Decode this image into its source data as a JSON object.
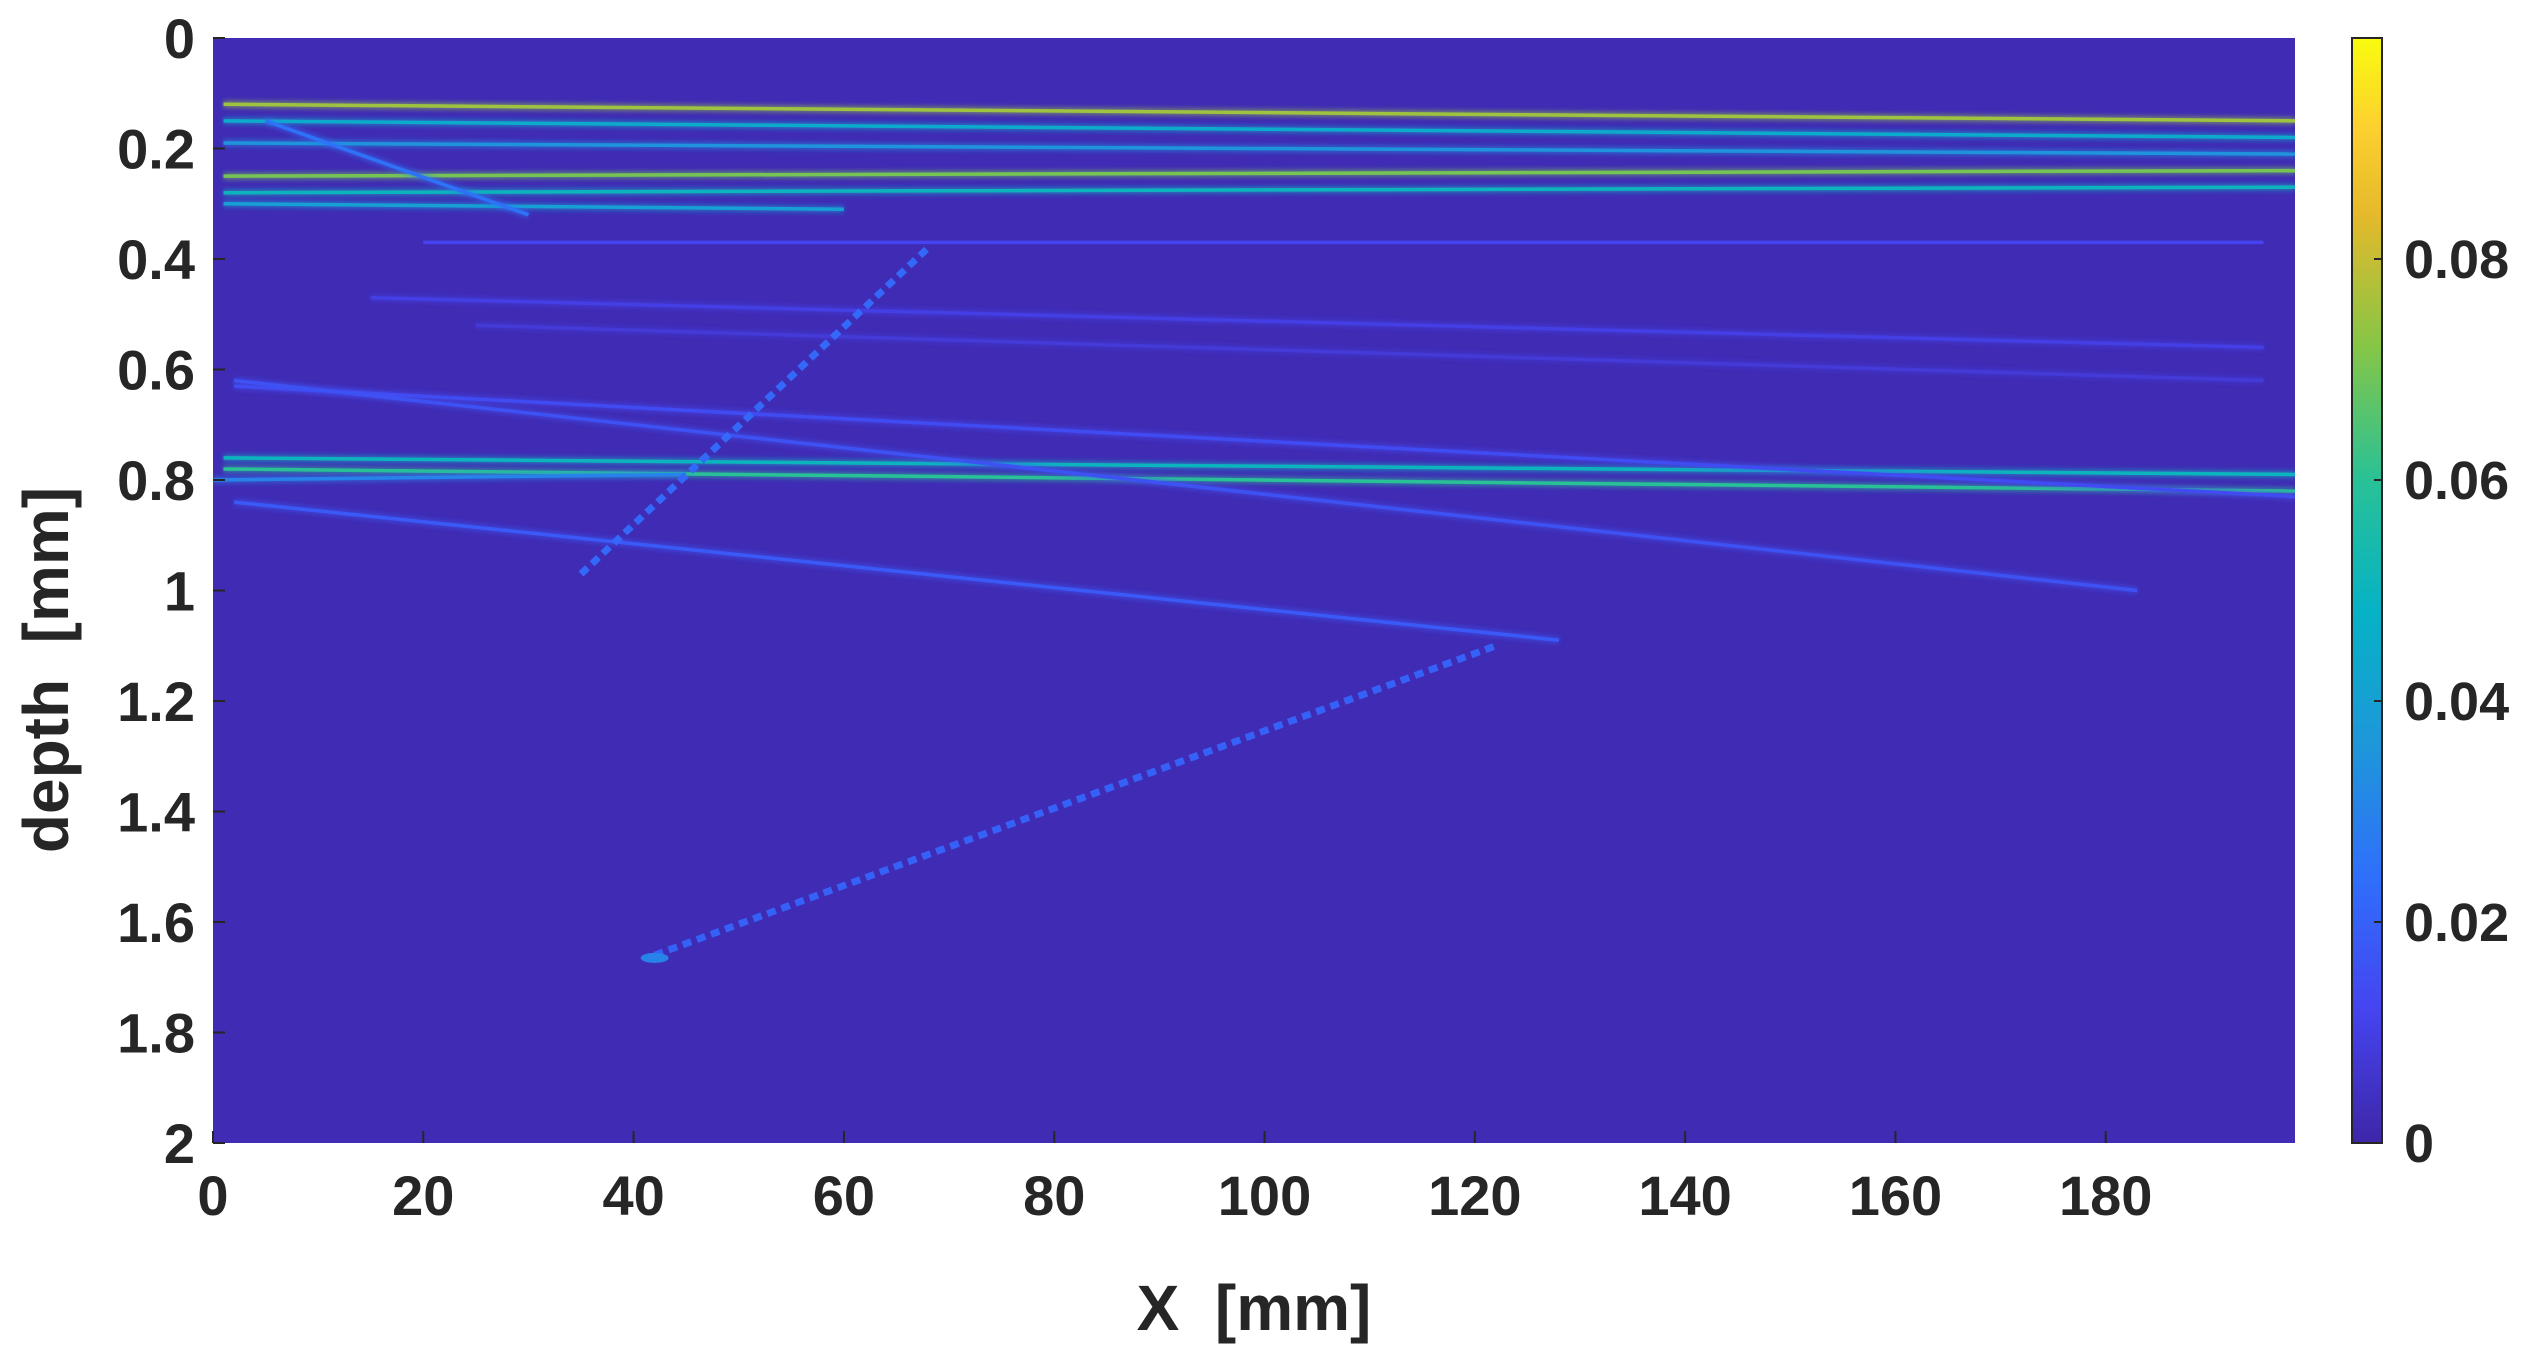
{
  "chart_data": {
    "type": "heatmap",
    "title": "",
    "xlabel": "X  [mm]",
    "ylabel": "depth  [mm]",
    "xlim": [
      0,
      198
    ],
    "ylim": [
      2,
      0
    ],
    "x_ticks": [
      0,
      20,
      40,
      60,
      80,
      100,
      120,
      140,
      160,
      180
    ],
    "y_ticks": [
      0,
      0.2,
      0.4,
      0.6,
      0.8,
      1,
      1.2,
      1.4,
      1.6,
      1.8,
      2
    ],
    "y_tick_labels": [
      "0",
      "0.2",
      "0.4",
      "0.6",
      "0.8",
      "1",
      "1.2",
      "1.4",
      "1.6",
      "1.8",
      "2"
    ],
    "colorbar": {
      "colormap": "parula",
      "range": [
        0,
        0.1
      ],
      "ticks": [
        0,
        0.02,
        0.04,
        0.06,
        0.08
      ],
      "tick_labels": [
        "0",
        "0.02",
        "0.04",
        "0.06",
        "0.08"
      ]
    },
    "background_value": 0.002,
    "features": [
      {
        "kind": "line",
        "x": [
          1,
          198
        ],
        "depth": [
          0.12,
          0.15
        ],
        "value": 0.075
      },
      {
        "kind": "line",
        "x": [
          1,
          198
        ],
        "depth": [
          0.15,
          0.18
        ],
        "value": 0.045
      },
      {
        "kind": "line",
        "x": [
          1,
          198
        ],
        "depth": [
          0.19,
          0.21
        ],
        "value": 0.035
      },
      {
        "kind": "line",
        "x": [
          1,
          198
        ],
        "depth": [
          0.25,
          0.24
        ],
        "value": 0.07
      },
      {
        "kind": "line",
        "x": [
          1,
          198
        ],
        "depth": [
          0.28,
          0.27
        ],
        "value": 0.05
      },
      {
        "kind": "line",
        "x": [
          1,
          60
        ],
        "depth": [
          0.3,
          0.31
        ],
        "value": 0.04
      },
      {
        "kind": "line",
        "x": [
          5,
          30
        ],
        "depth": [
          0.15,
          0.32
        ],
        "value": 0.025
      },
      {
        "kind": "line",
        "x": [
          20,
          195
        ],
        "depth": [
          0.37,
          0.37
        ],
        "value": 0.012
      },
      {
        "kind": "line",
        "x": [
          15,
          195
        ],
        "depth": [
          0.47,
          0.56
        ],
        "value": 0.01
      },
      {
        "kind": "line",
        "x": [
          25,
          195
        ],
        "depth": [
          0.52,
          0.62
        ],
        "value": 0.008
      },
      {
        "kind": "line",
        "x": [
          1,
          198
        ],
        "depth": [
          0.76,
          0.79
        ],
        "value": 0.05
      },
      {
        "kind": "line",
        "x": [
          1,
          198
        ],
        "depth": [
          0.78,
          0.82
        ],
        "value": 0.06
      },
      {
        "kind": "line",
        "x": [
          0,
          45
        ],
        "depth": [
          0.8,
          0.79
        ],
        "value": 0.03
      },
      {
        "kind": "line",
        "x": [
          2,
          198
        ],
        "depth": [
          0.63,
          0.83
        ],
        "value": 0.014
      },
      {
        "kind": "line",
        "x": [
          2,
          183
        ],
        "depth": [
          0.62,
          1.0
        ],
        "value": 0.016
      },
      {
        "kind": "line",
        "x": [
          2,
          128
        ],
        "depth": [
          0.84,
          1.09
        ],
        "value": 0.018
      },
      {
        "kind": "dotted",
        "x": [
          35,
          68
        ],
        "depth": [
          0.97,
          0.38
        ],
        "value": 0.022
      },
      {
        "kind": "dotted",
        "x": [
          42,
          122
        ],
        "depth": [
          1.66,
          1.1
        ],
        "value": 0.02
      },
      {
        "kind": "spot",
        "x": [
          42,
          42
        ],
        "depth": [
          1.665,
          1.665
        ],
        "value": 0.03
      }
    ]
  }
}
